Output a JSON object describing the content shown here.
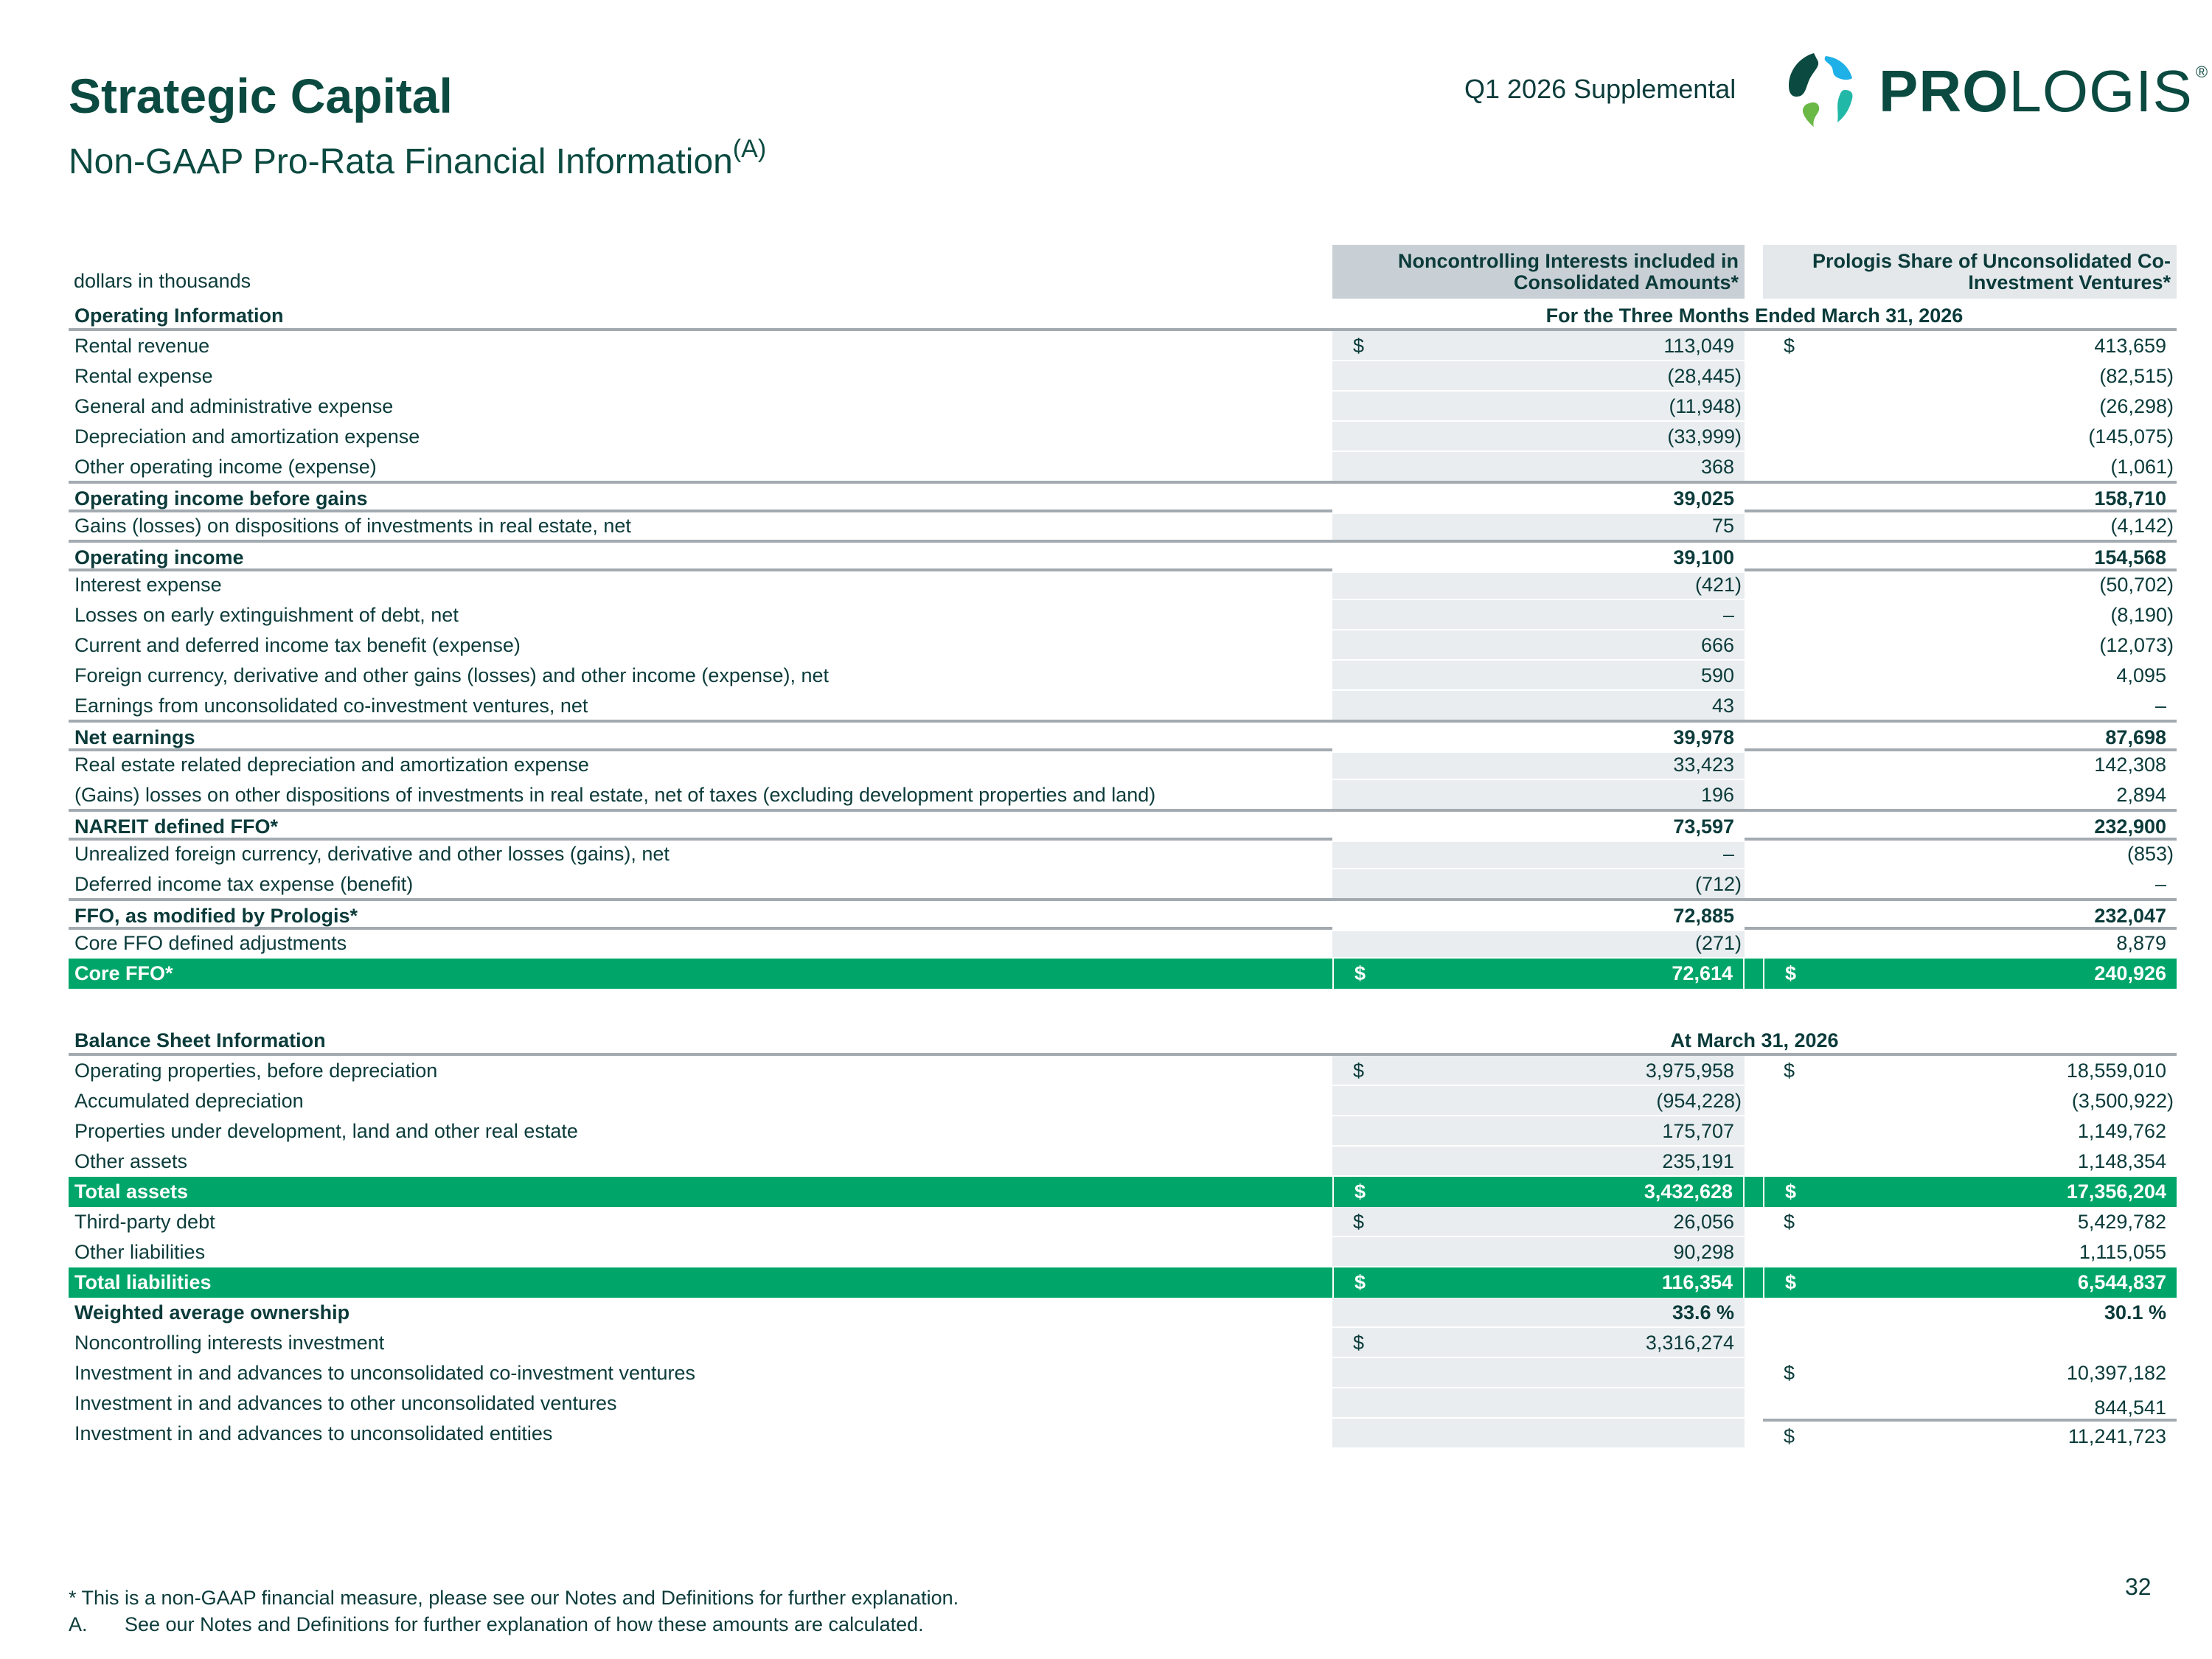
{
  "header": {
    "title": "Strategic Capital",
    "subtitle": "Non-GAAP Pro-Rata Financial Information",
    "subtitle_note": "(A)",
    "supplemental": "Q1 2026 Supplemental",
    "logo_bold": "PRO",
    "logo_rest": "LOGIS",
    "logo_reg": "®"
  },
  "table": {
    "units": "dollars in thousands",
    "col1_header": "Noncontrolling Interests included in Consolidated Amounts*",
    "col2_header": "Prologis Share of Unconsolidated Co-Investment Ventures*",
    "sections": [
      {
        "title": "Operating Information",
        "period": "For the Three Months Ended March 31, 2026",
        "rows": [
          {
            "label": "Rental revenue",
            "d1": "$",
            "v1": "113,049",
            "d2": "$",
            "v2": "413,659",
            "type": "normal"
          },
          {
            "label": "Rental expense",
            "v1": "(28,445)",
            "v2": "(82,515)",
            "type": "normal"
          },
          {
            "label": "General and administrative expense",
            "v1": "(11,948)",
            "v2": "(26,298)",
            "type": "normal"
          },
          {
            "label": "Depreciation and amortization expense",
            "v1": "(33,999)",
            "v2": "(145,075)",
            "type": "normal"
          },
          {
            "label": "Other operating income (expense)",
            "v1": "368",
            "v2": "(1,061)",
            "type": "normal"
          },
          {
            "label": "Operating income before gains",
            "v1": "39,025",
            "v2": "158,710",
            "type": "bold"
          },
          {
            "label": "Gains (losses) on dispositions of investments in real estate, net",
            "v1": "75",
            "v2": "(4,142)",
            "type": "normal"
          },
          {
            "label": "Operating income",
            "v1": "39,100",
            "v2": "154,568",
            "type": "bold"
          },
          {
            "label": "Interest expense",
            "v1": "(421)",
            "v2": "(50,702)",
            "type": "normal"
          },
          {
            "label": "Losses on early extinguishment of debt, net",
            "v1": "–",
            "v2": "(8,190)",
            "type": "normal"
          },
          {
            "label": "Current and deferred income tax benefit (expense)",
            "v1": "666",
            "v2": "(12,073)",
            "type": "normal"
          },
          {
            "label": "Foreign currency, derivative and other gains (losses) and other income (expense), net",
            "v1": "590",
            "v2": "4,095",
            "type": "normal"
          },
          {
            "label": "Earnings from unconsolidated co-investment ventures, net",
            "v1": "43",
            "v2": "–",
            "type": "normal"
          },
          {
            "label": "Net earnings",
            "v1": "39,978",
            "v2": "87,698",
            "type": "bold"
          },
          {
            "label": "Real estate related depreciation and amortization expense",
            "v1": "33,423",
            "v2": "142,308",
            "type": "normal"
          },
          {
            "label": "(Gains) losses on other dispositions of investments in real estate, net of taxes (excluding development properties and land)",
            "v1": "196",
            "v2": "2,894",
            "type": "normal"
          },
          {
            "label": "NAREIT defined FFO*",
            "v1": "73,597",
            "v2": "232,900",
            "type": "bold"
          },
          {
            "label": "Unrealized foreign currency, derivative and other losses (gains), net",
            "v1": "–",
            "v2": "(853)",
            "type": "normal"
          },
          {
            "label": "Deferred income tax expense (benefit)",
            "v1": "(712)",
            "v2": "–",
            "type": "normal"
          },
          {
            "label": "FFO, as modified by Prologis*",
            "v1": "72,885",
            "v2": "232,047",
            "type": "bold"
          },
          {
            "label": "Core FFO defined adjustments",
            "v1": "(271)",
            "v2": "8,879",
            "type": "normal"
          },
          {
            "label": "Core FFO*",
            "d1": "$",
            "v1": "72,614",
            "d2": "$",
            "v2": "240,926",
            "type": "green"
          }
        ]
      },
      {
        "title": "Balance Sheet Information",
        "period": "At March 31, 2026",
        "rows": [
          {
            "label": "Operating properties, before depreciation",
            "d1": "$",
            "v1": "3,975,958",
            "d2": "$",
            "v2": "18,559,010",
            "type": "normal"
          },
          {
            "label": "Accumulated depreciation",
            "v1": "(954,228)",
            "v2": "(3,500,922)",
            "type": "normal"
          },
          {
            "label": "Properties under development, land and other real estate",
            "v1": "175,707",
            "v2": "1,149,762",
            "type": "normal"
          },
          {
            "label": "Other assets",
            "v1": "235,191",
            "v2": "1,148,354",
            "type": "normal"
          },
          {
            "label": "Total assets",
            "d1": "$",
            "v1": "3,432,628",
            "d2": "$",
            "v2": "17,356,204",
            "type": "green"
          },
          {
            "label": "Third-party debt",
            "d1": "$",
            "v1": "26,056",
            "d2": "$",
            "v2": "5,429,782",
            "type": "normal"
          },
          {
            "label": "Other liabilities",
            "v1": "90,298",
            "v2": "1,115,055",
            "type": "normal"
          },
          {
            "label": "Total liabilities",
            "d1": "$",
            "v1": "116,354",
            "d2": "$",
            "v2": "6,544,837",
            "type": "green"
          },
          {
            "label": "Weighted average ownership",
            "v1": "33.6 %",
            "v2": "30.1 %",
            "type": "boldplain"
          },
          {
            "label": "Noncontrolling interests investment",
            "d1": "$",
            "v1": "3,316,274",
            "type": "normal"
          },
          {
            "label": "Investment in and advances to unconsolidated co-investment ventures",
            "d2": "$",
            "v2": "10,397,182",
            "type": "normal"
          },
          {
            "label": "Investment in and advances to other unconsolidated ventures",
            "v2": "844,541",
            "type": "low"
          },
          {
            "label": "Investment in and advances to unconsolidated entities",
            "d2": "$",
            "v2": "11,241,723",
            "type": "topline"
          }
        ]
      }
    ]
  },
  "footnotes": {
    "star": "* This is a non-GAAP financial measure, please see our Notes and Definitions for further explanation.",
    "a_marker": "A.",
    "a_text": "See our Notes and Definitions for further explanation of how these amounts are calculated."
  },
  "page_number": "32",
  "colors": {
    "green": "#00a669",
    "text": "#0b3b3a",
    "brand": "#0b4a40"
  }
}
